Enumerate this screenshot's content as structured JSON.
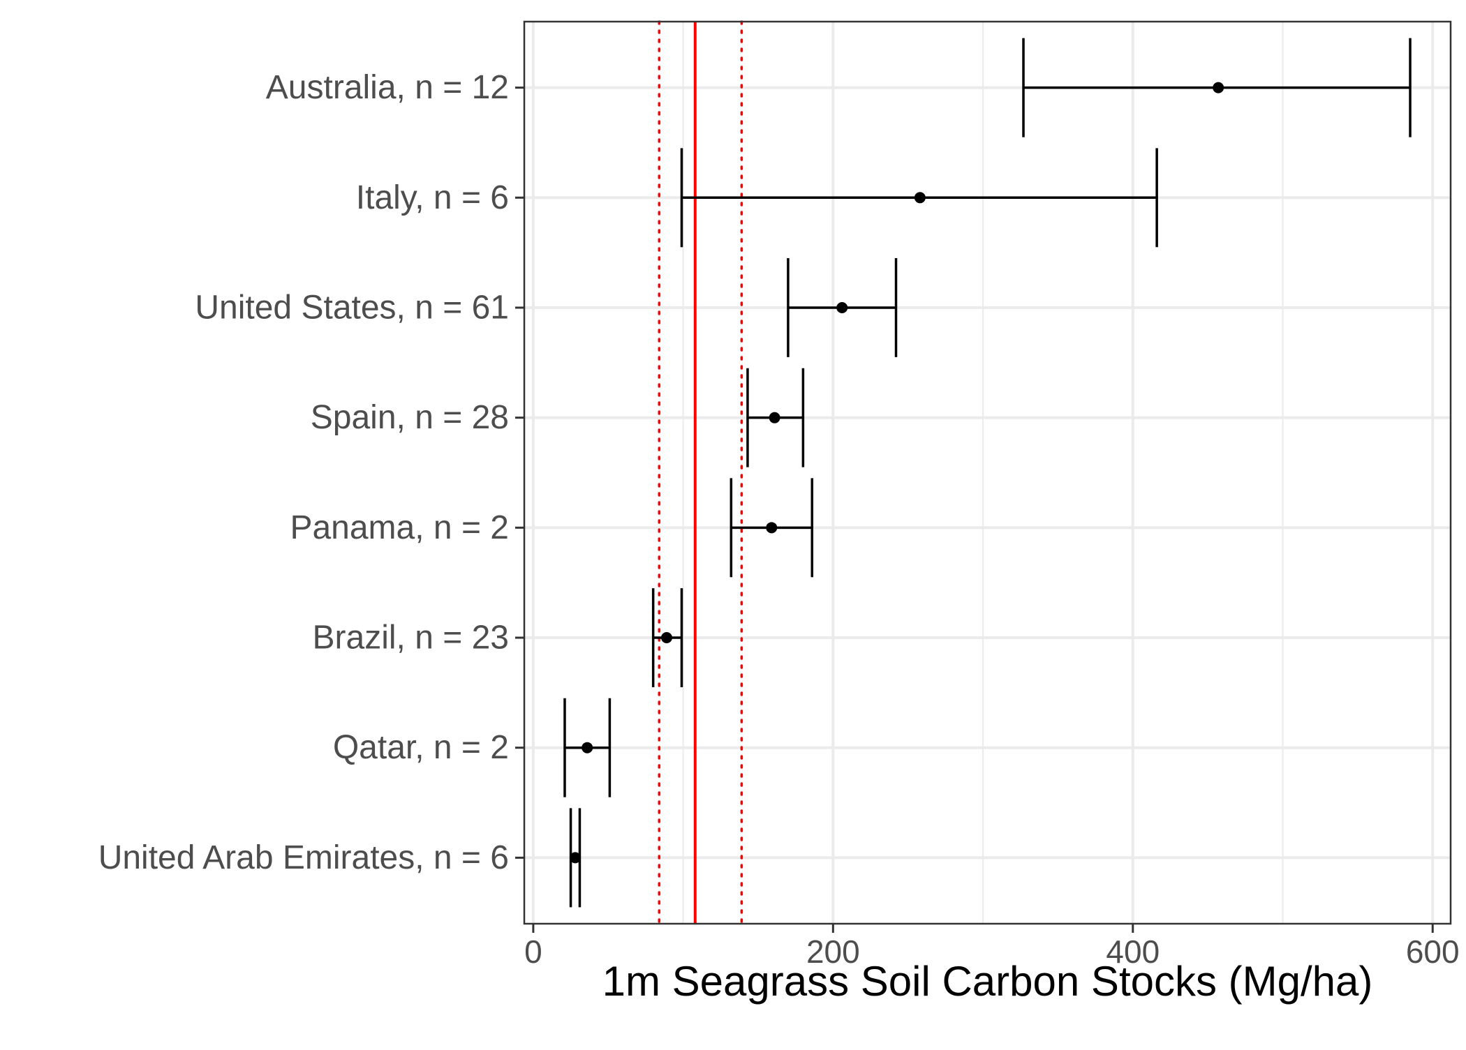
{
  "chart_data": {
    "type": "errorbar",
    "title": "",
    "xlabel": "1m Seagrass Soil Carbon Stocks (Mg/ha)",
    "ylabel": "",
    "xlim": [
      -6,
      612
    ],
    "xticks": [
      0,
      200,
      400,
      600
    ],
    "grid": true,
    "categories": [
      "Australia, n = 12",
      "Italy, n = 6",
      "United States, n = 61",
      "Spain, n = 28",
      "Panama, n = 2",
      "Brazil, n = 23",
      "Qatar, n = 2",
      "United Arab Emirates, n = 6"
    ],
    "points": [
      {
        "mean": 457,
        "lower": 327,
        "upper": 585
      },
      {
        "mean": 258,
        "lower": 99,
        "upper": 416
      },
      {
        "mean": 206,
        "lower": 170,
        "upper": 242
      },
      {
        "mean": 161,
        "lower": 143,
        "upper": 180
      },
      {
        "mean": 159,
        "lower": 132,
        "upper": 186
      },
      {
        "mean": 89,
        "lower": 80,
        "upper": 99
      },
      {
        "mean": 36,
        "lower": 21,
        "upper": 51
      },
      {
        "mean": 28,
        "lower": 25,
        "upper": 31
      }
    ],
    "reference_lines": {
      "mean": 108,
      "ci_lower": 84,
      "ci_upper": 139,
      "color": "#ff0000"
    },
    "point_color": "#000000",
    "grid_color": "#ebebeb",
    "panel_border_color": "#333333"
  }
}
